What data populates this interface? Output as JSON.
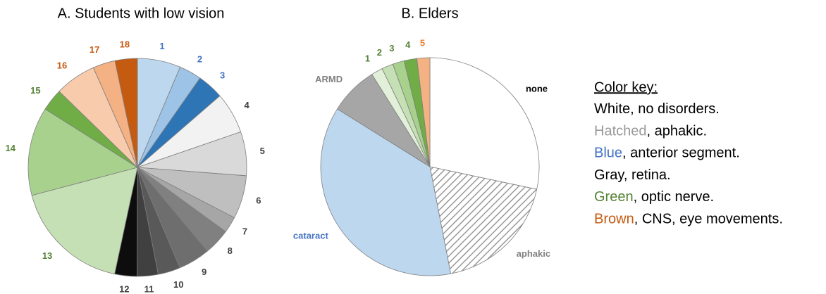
{
  "chart_data": [
    {
      "type": "pie",
      "title": "A. Students with low vision",
      "categories": [
        "1",
        "2",
        "3",
        "4",
        "5",
        "6",
        "7",
        "8",
        "9",
        "10",
        "11",
        "12",
        "13",
        "14",
        "15",
        "16",
        "17",
        "18"
      ],
      "values": [
        6.4,
        3.3,
        3.9,
        6.1,
        6.5,
        6.4,
        2.4,
        3.9,
        4.7,
        3.3,
        3.1,
        3.3,
        17.5,
        13.1,
        3.3,
        6.1,
        3.3,
        3.3
      ],
      "colors": [
        "#bdd7ee",
        "#9dc3e6",
        "#2e75b6",
        "#f2f2f2",
        "#d9d9d9",
        "#bfbfbf",
        "#a6a6a6",
        "#808080",
        "#6e6e6e",
        "#595959",
        "#404040",
        "#0d0d0d",
        "#c5e0b4",
        "#a9d18e",
        "#70ad47",
        "#f8cbad",
        "#f4b183",
        "#c55a11"
      ],
      "label_colors": [
        "#4472c4",
        "#4472c4",
        "#4472c4",
        "#404040",
        "#404040",
        "#404040",
        "#404040",
        "#404040",
        "#404040",
        "#404040",
        "#404040",
        "#404040",
        "#548235",
        "#548235",
        "#548235",
        "#c55a11",
        "#c55a11",
        "#c55a11"
      ]
    },
    {
      "type": "pie",
      "title": "B. Elders",
      "categories": [
        "none",
        "aphakic",
        "cataract",
        "ARMD",
        "1",
        "2",
        "3",
        "4",
        "5"
      ],
      "values": [
        28.3,
        18.6,
        36.9,
        7.2,
        1.7,
        1.7,
        1.7,
        1.9,
        1.9
      ],
      "colors": [
        "#ffffff",
        "#ffffff",
        "#bdd7ee",
        "#a6a6a6",
        "#e2f0d9",
        "#c5e0b4",
        "#a9d18e",
        "#70ad47",
        "#f4b183"
      ],
      "hatched": [
        false,
        true,
        false,
        false,
        false,
        false,
        false,
        false,
        false
      ],
      "label_colors": [
        "#000000",
        "#808080",
        "#4472c4",
        "#808080",
        "#548235",
        "#548235",
        "#548235",
        "#548235",
        "#ed7d31"
      ]
    }
  ],
  "color_key": {
    "title": "Color key:",
    "items": [
      {
        "term": "White",
        "color": "#000000",
        "rest": ", no disorders."
      },
      {
        "term": "Hatched",
        "color": "#999999",
        "rest": ", aphakic."
      },
      {
        "term": "Blue",
        "color": "#4472c4",
        "rest": ", anterior segment."
      },
      {
        "term": "Gray",
        "color": "#000000",
        "rest": ", retina."
      },
      {
        "term": "Green",
        "color": "#548235",
        "rest": ", optic nerve."
      },
      {
        "term": "Brown",
        "color": "#c55a11",
        "rest": ", CNS, eye movements."
      }
    ]
  }
}
